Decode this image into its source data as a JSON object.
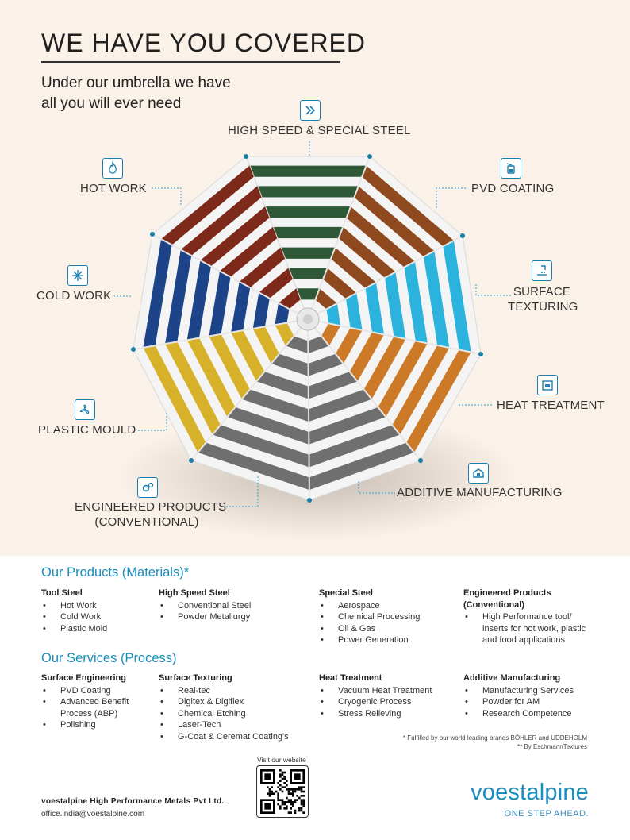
{
  "header": {
    "title": "WE HAVE YOU COVERED",
    "subtitle_line1": "Under our umbrella we have",
    "subtitle_line2": "all you will ever need"
  },
  "umbrella": {
    "labels": {
      "high_speed": "HIGH SPEED & SPECIAL STEEL",
      "pvd": "PVD COATING",
      "surface_1": "SURFACE",
      "surface_2": "TEXTURING",
      "heat": "HEAT TREATMENT",
      "additive": "ADDITIVE MANUFACTURING",
      "engineered_1": "ENGINEERED PRODUCTS",
      "engineered_2": "(CONVENTIONAL)",
      "plastic": "PLASTIC MOULD",
      "cold": "COLD WORK",
      "hot": "HOT WORK"
    },
    "icons": [
      "double-chevron-icon",
      "coating-jar-icon",
      "texturing-icon",
      "furnace-icon",
      "3d-printer-icon",
      "gears-icon",
      "fan-icon",
      "snowflake-icon",
      "flame-icon"
    ],
    "colors": {
      "green": "#2e5836",
      "brown": "#8e4a1e",
      "cyan": "#2bb3de",
      "orange": "#cc7a28",
      "gray": "#6f6f6f",
      "yellow": "#d7b12a",
      "blue": "#1d4388",
      "red": "#7e2a1a",
      "accent": "#1a8fbf"
    }
  },
  "products": {
    "title": "Our Products (Materials)*",
    "columns": [
      {
        "head": "Tool Steel",
        "items": [
          "Hot Work",
          "Cold Work",
          "Plastic Mold"
        ]
      },
      {
        "head": "High Speed Steel",
        "items": [
          "Conventional Steel",
          "Powder Metallurgy"
        ]
      },
      {
        "head": "Special Steel",
        "items": [
          "Aerospace",
          "Chemical Processing",
          "Oil & Gas",
          "Power Generation"
        ]
      },
      {
        "head": "Engineered Products (Conventional)",
        "items": [
          "High Performance tool/ inserts for hot work, plastic and food applications"
        ]
      }
    ]
  },
  "services": {
    "title": "Our Services (Process)",
    "columns": [
      {
        "head": "Surface Engineering",
        "items": [
          "PVD Coating",
          "Advanced Benefit Process (ABP)",
          "Polishing"
        ]
      },
      {
        "head": "Surface Texturing",
        "items": [
          "Real-tec",
          "Digitex & Digiflex",
          "Chemical Etching",
          "Laser-Tech",
          "G-Coat & Ceremat Coating's"
        ]
      },
      {
        "head": "Heat Treatment",
        "items": [
          "Vacuum Heat Treatment",
          "Cryogenic Process",
          "Stress Relieving"
        ]
      },
      {
        "head": "Additive Manufacturing",
        "items": [
          "Manufacturing Services",
          "Powder for AM",
          "Research Competence"
        ]
      }
    ]
  },
  "footnotes": {
    "line1": "* Fulfilled by our world leading brands BÖHLER and UDDEHOLM",
    "line2": "** By EschmannTextures"
  },
  "footer": {
    "visit": "Visit our website",
    "company": "voestalpine High Performance Metals Pvt Ltd.",
    "email": "office.india@voestalpine.com",
    "brand": "voestalpine",
    "tagline": "ONE STEP AHEAD."
  }
}
